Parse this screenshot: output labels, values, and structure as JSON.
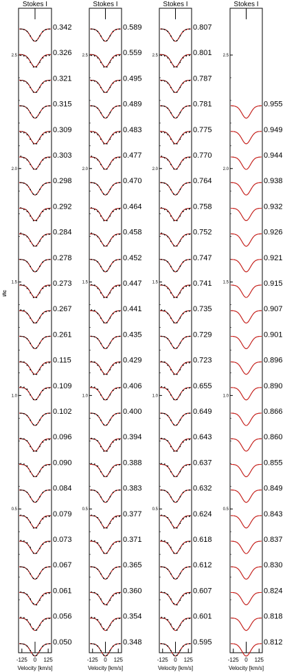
{
  "chart_data": [
    {
      "type": "line",
      "title": "Stokes I",
      "ylabel": "I/Ic",
      "xlabel": "Velocity [km/s]",
      "x_ticks": [
        "-125",
        "0",
        "125"
      ],
      "y_ticks": [
        "0.5",
        "1.0",
        "1.5",
        "2.0",
        "2.5"
      ],
      "ylim": [
        -0.05,
        2.7
      ],
      "offsets": [
        0.05,
        0.056,
        0.061,
        0.067,
        0.073,
        0.079,
        0.084,
        0.09,
        0.096,
        0.102,
        0.109,
        0.115,
        0.261,
        0.267,
        0.273,
        0.278,
        0.284,
        0.292,
        0.298,
        0.303,
        0.309,
        0.315,
        0.321,
        0.326,
        0.342
      ],
      "phase_labels": [
        "0.050",
        "0.056",
        "0.061",
        "0.067",
        "0.073",
        "0.079",
        "0.084",
        "0.090",
        "0.096",
        "0.102",
        "0.109",
        "0.115",
        "0.261",
        "0.267",
        "0.273",
        "0.278",
        "0.284",
        "0.292",
        "0.298",
        "0.303",
        "0.309",
        "0.315",
        "0.321",
        "0.326",
        "0.342"
      ],
      "has_model_fit": true,
      "has_observations": true
    },
    {
      "type": "line",
      "title": "Stokes I",
      "ylabel": "I/Ic",
      "xlabel": "Velocity [km/s]",
      "x_ticks": [
        "-125",
        "0",
        "125"
      ],
      "y_ticks": [
        "0.5",
        "1.0",
        "1.5",
        "2.0",
        "2.5"
      ],
      "ylim": [
        -0.05,
        2.7
      ],
      "phase_labels": [
        "0.348",
        "0.354",
        "0.360",
        "0.365",
        "0.371",
        "0.377",
        "0.383",
        "0.388",
        "0.394",
        "0.400",
        "0.406",
        "0.429",
        "0.435",
        "0.441",
        "0.447",
        "0.452",
        "0.458",
        "0.464",
        "0.470",
        "0.477",
        "0.483",
        "0.489",
        "0.495",
        "0.559",
        "0.589"
      ],
      "has_model_fit": true,
      "has_observations": true
    },
    {
      "type": "line",
      "title": "Stokes I",
      "ylabel": "I/Ic",
      "xlabel": "Velocity [km/s]",
      "x_ticks": [
        "-125",
        "0",
        "125"
      ],
      "y_ticks": [
        "0.5",
        "1.0",
        "1.5",
        "2.0",
        "2.5"
      ],
      "ylim": [
        -0.05,
        2.7
      ],
      "phase_labels": [
        "0.595",
        "0.601",
        "0.607",
        "0.612",
        "0.618",
        "0.624",
        "0.632",
        "0.637",
        "0.643",
        "0.649",
        "0.655",
        "0.723",
        "0.729",
        "0.735",
        "0.741",
        "0.747",
        "0.752",
        "0.758",
        "0.764",
        "0.770",
        "0.775",
        "0.781",
        "0.787",
        "0.801",
        "0.807"
      ],
      "has_model_fit": true,
      "has_observations": true
    },
    {
      "type": "line",
      "title": "Stokes I",
      "ylabel": "",
      "xlabel": "Velocity [km/s]",
      "x_ticks": [
        "-125",
        "0",
        "125"
      ],
      "y_ticks": [
        "0.5",
        "1.0",
        "1.5",
        "2.0",
        "2.5"
      ],
      "ylim": [
        -0.05,
        2.7
      ],
      "phase_labels": [
        "0.812",
        "0.818",
        "0.824",
        "0.830",
        "0.837",
        "0.843",
        "0.849",
        "0.855",
        "0.860",
        "0.866",
        "0.890",
        "0.896",
        "0.901",
        "0.907",
        "0.915",
        "0.921",
        "0.926",
        "0.932",
        "0.938",
        "0.944",
        "0.949",
        "0.955"
      ],
      "has_model_fit": true,
      "has_observations": true
    }
  ],
  "colors": {
    "model": "#e0201b",
    "observed": "#000000",
    "axes": "#000000"
  },
  "line_profile": {
    "center": 0,
    "depth": 0.09,
    "sigma_kms": 42,
    "continuum": 1.0
  }
}
